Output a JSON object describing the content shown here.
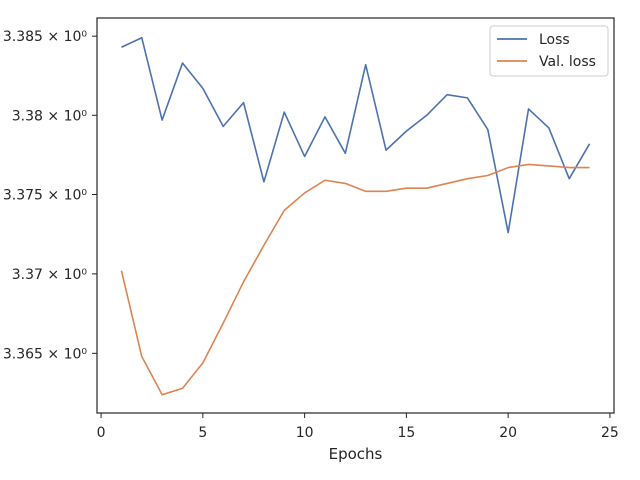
{
  "chart_data": {
    "type": "line",
    "title": "",
    "xlabel": "Epochs",
    "ylabel": "",
    "xlim": [
      -0.2,
      25.2
    ],
    "ylim": [
      3.36125,
      3.38615
    ],
    "x_ticks": [
      0,
      5,
      10,
      15,
      20,
      25
    ],
    "x_tick_labels": [
      "0",
      "5",
      "10",
      "15",
      "20",
      "25"
    ],
    "y_ticks": [
      3.365,
      3.37,
      3.375,
      3.38,
      3.385
    ],
    "y_tick_labels": [
      "3.365 × 10⁰",
      "3.37 × 10⁰",
      "3.375 × 10⁰",
      "3.38 × 10⁰",
      "3.385 × 10⁰"
    ],
    "y_scale": "log",
    "grid": false,
    "legend_position": "top-right",
    "x": [
      1,
      2,
      3,
      4,
      5,
      6,
      7,
      8,
      9,
      10,
      11,
      12,
      13,
      14,
      15,
      16,
      17,
      18,
      19,
      20,
      21,
      22,
      23,
      24
    ],
    "series": [
      {
        "name": "Loss",
        "color": "#4c72b0",
        "values": [
          3.3843,
          3.3849,
          3.3797,
          3.3833,
          3.3817,
          3.3793,
          3.3808,
          3.3758,
          3.3802,
          3.3774,
          3.3799,
          3.3776,
          3.3832,
          3.3778,
          3.379,
          3.38,
          3.3813,
          3.3811,
          3.3791,
          3.3726,
          3.3804,
          3.3792,
          3.376,
          3.3782
        ]
      },
      {
        "name": "Val. loss",
        "color": "#dd8452",
        "values": [
          3.3702,
          3.3648,
          3.3624,
          3.3628,
          3.3644,
          3.3669,
          3.3695,
          3.3718,
          3.374,
          3.3751,
          3.3759,
          3.3757,
          3.3752,
          3.3752,
          3.3754,
          3.3754,
          3.3757,
          3.376,
          3.3762,
          3.3767,
          3.3769,
          3.3768,
          3.3767,
          3.3767
        ]
      }
    ]
  }
}
